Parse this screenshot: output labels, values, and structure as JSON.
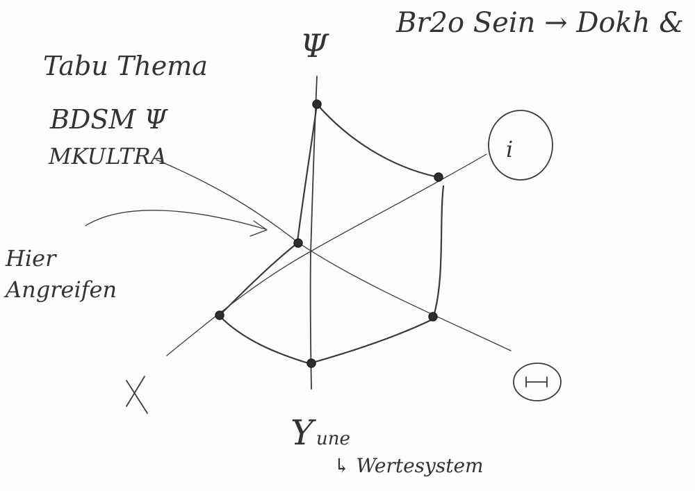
{
  "title": "Br2o Sein → Dokh &",
  "top_left_note": [
    "Tabu Thema",
    "BDSM Ψ",
    "MKULTRA"
  ],
  "left_note": [
    "Hier",
    "Angreifen"
  ],
  "axes": {
    "psi": "Ψ",
    "x": "X",
    "y": "Y",
    "y_suffix": "une",
    "y_sub": "↳ Wertesystem",
    "i_label": "i",
    "h_label": "H"
  },
  "colors": {
    "ink": "#3a3a3a",
    "paper": "#fdfdfc"
  }
}
